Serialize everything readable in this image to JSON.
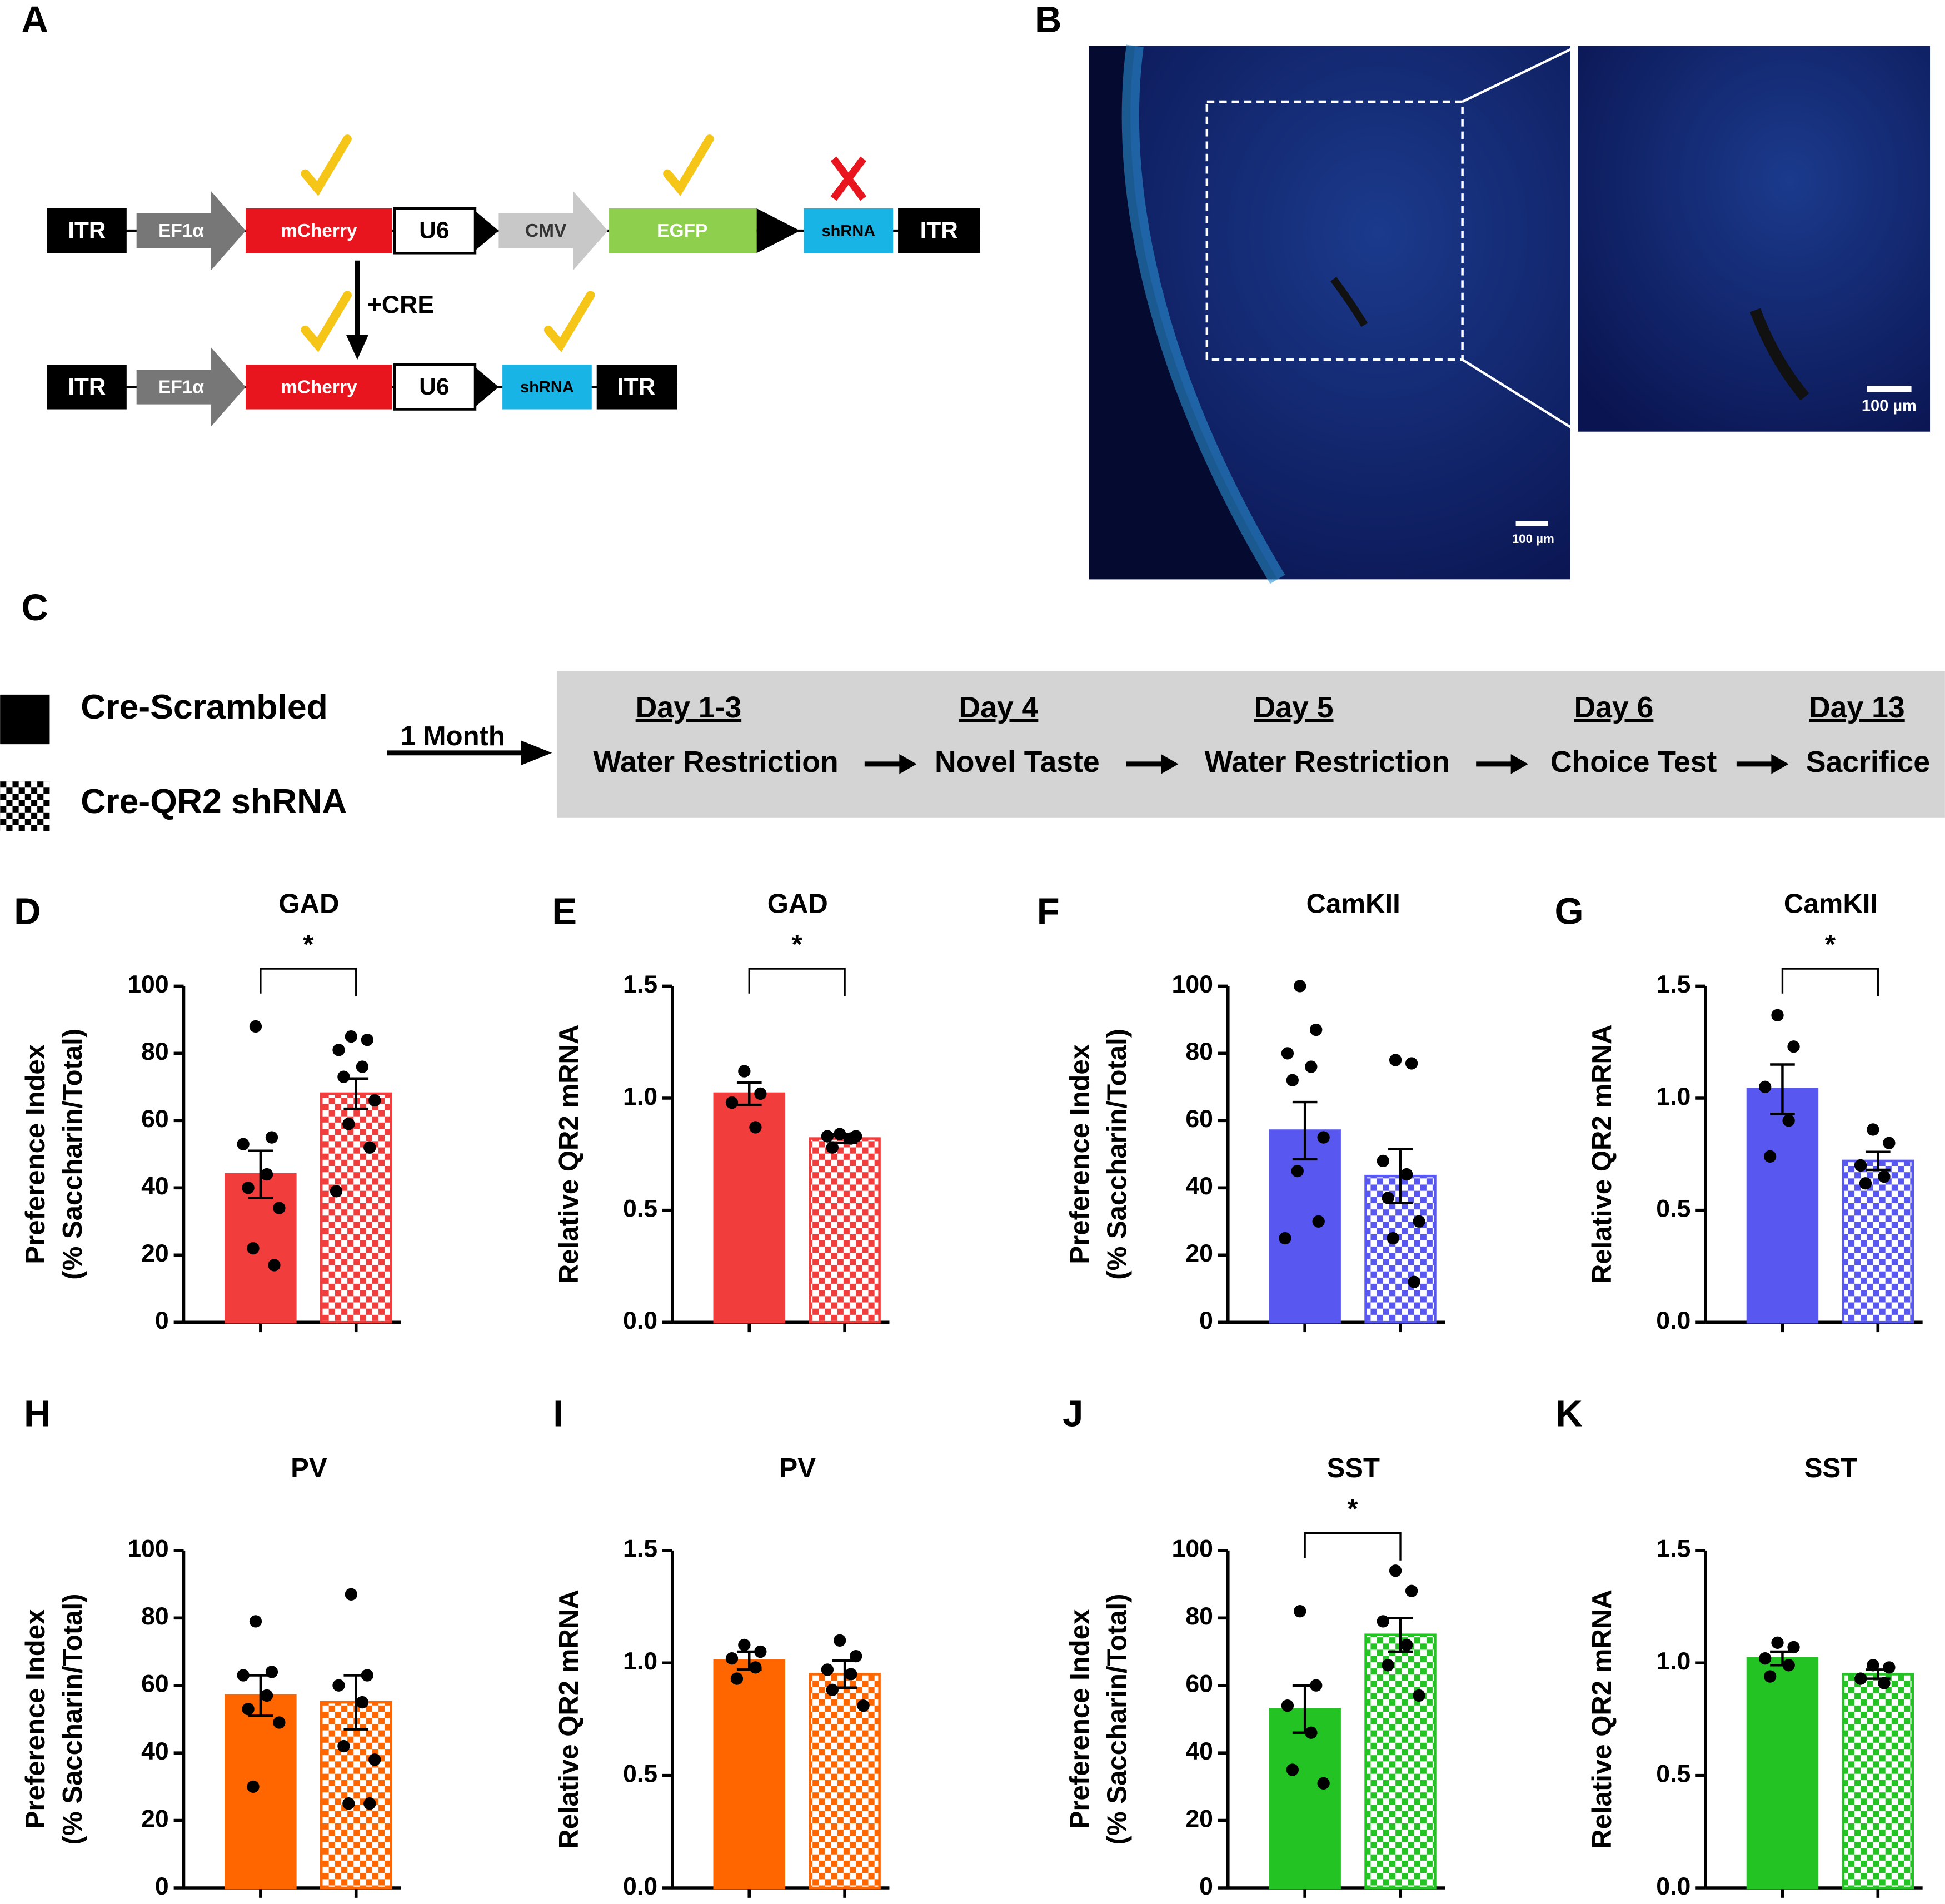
{
  "panel_labels": [
    "A",
    "B",
    "C",
    "D",
    "E",
    "F",
    "G",
    "H",
    "I",
    "J",
    "K"
  ],
  "construct": {
    "before": [
      "ITR",
      "EF1α",
      "mCherry",
      "U6",
      "CMV",
      "EGFP",
      "shRNA",
      "ITR"
    ],
    "step": "+CRE",
    "after": [
      "ITR",
      "EF1α",
      "mCherry",
      "U6",
      "shRNA",
      "ITR"
    ]
  },
  "micrograph": {
    "scale_bars": [
      "100 µm",
      "100 µm"
    ]
  },
  "timeline": {
    "legend": [
      "Cre-Scrambled",
      "Cre-QR2 shRNA"
    ],
    "delay": "1 Month",
    "steps": [
      {
        "day": "Day 1-3",
        "label": "Water Restriction"
      },
      {
        "day": "Day 4",
        "label": "Novel Taste"
      },
      {
        "day": "Day 5",
        "label": "Water Restriction"
      },
      {
        "day": "Day 6",
        "label": "Choice Test"
      },
      {
        "day": "Day 13",
        "label": "Sacrifice"
      }
    ]
  },
  "chart_data": [
    {
      "type": "bar",
      "title": "GAD",
      "ylabel": [
        "Preference Index",
        "(% Saccharin/Total)"
      ],
      "categories": [
        null,
        null
      ],
      "values": [
        44,
        68
      ],
      "errors": [
        7,
        4.5
      ],
      "points": [
        [
          88,
          55,
          53,
          44,
          40,
          34,
          22,
          17
        ],
        [
          85,
          84,
          81,
          76,
          73,
          66,
          59,
          52,
          39
        ]
      ],
      "color": "#f23d3d",
      "ylim": [
        0,
        100
      ],
      "yticks": [
        0,
        20,
        40,
        60,
        80,
        100
      ],
      "significance": "*"
    },
    {
      "type": "bar",
      "title": "GAD",
      "ylabel": [
        "Relative QR2 mRNA"
      ],
      "categories": [
        null,
        null
      ],
      "values": [
        1.02,
        0.82
      ],
      "errors": [
        0.05,
        0.02
      ],
      "points": [
        [
          1.12,
          1.02,
          0.98,
          0.87
        ],
        [
          0.84,
          0.83,
          0.83,
          0.82,
          0.78
        ]
      ],
      "color": "#f23d3d",
      "ylim": [
        0,
        1.5
      ],
      "yticks": [
        {
          "value": 0,
          "label": "0.0"
        },
        {
          "value": 0.5,
          "label": "0.5"
        },
        {
          "value": 1,
          "label": "1.0"
        },
        {
          "value": 1.5,
          "label": "1.5"
        }
      ],
      "significance": "*"
    },
    {
      "type": "bar",
      "title": "CamKII",
      "ylabel": [
        "Preference Index",
        "(% Saccharin/Total)"
      ],
      "categories": [
        null,
        null
      ],
      "values": [
        57,
        43.5
      ],
      "errors": [
        8.5,
        8
      ],
      "points": [
        [
          100,
          87,
          80,
          76,
          72,
          55,
          45,
          30,
          25
        ],
        [
          78,
          77,
          48,
          44,
          37,
          30,
          25,
          12
        ]
      ],
      "color": "#5858f0",
      "ylim": [
        0,
        100
      ],
      "yticks": [
        0,
        20,
        40,
        60,
        80,
        100
      ]
    },
    {
      "type": "bar",
      "title": "CamKII",
      "ylabel": [
        "Relative QR2 mRNA"
      ],
      "categories": [
        null,
        null
      ],
      "values": [
        1.04,
        0.72
      ],
      "errors": [
        0.11,
        0.04
      ],
      "points": [
        [
          1.37,
          1.23,
          1.05,
          0.9,
          0.74
        ],
        [
          0.86,
          0.8,
          0.7,
          0.65,
          0.62
        ]
      ],
      "color": "#5858f0",
      "ylim": [
        0,
        1.5
      ],
      "yticks": [
        {
          "value": 0,
          "label": "0.0"
        },
        {
          "value": 0.5,
          "label": "0.5"
        },
        {
          "value": 1,
          "label": "1.0"
        },
        {
          "value": 1.5,
          "label": "1.5"
        }
      ],
      "significance": "*"
    },
    {
      "type": "bar",
      "title": "PV",
      "ylabel": [
        "Preference Index",
        "(% Saccharin/Total)"
      ],
      "categories": [
        null,
        null
      ],
      "values": [
        57,
        55
      ],
      "errors": [
        6,
        8
      ],
      "points": [
        [
          79,
          64,
          63,
          57,
          53,
          49,
          30
        ],
        [
          87,
          63,
          60,
          55,
          42,
          38,
          25,
          25
        ]
      ],
      "color": "#ff6600",
      "ylim": [
        0,
        100
      ],
      "yticks": [
        0,
        20,
        40,
        60,
        80,
        100
      ]
    },
    {
      "type": "bar",
      "title": "PV",
      "ylabel": [
        "Relative QR2 mRNA"
      ],
      "categories": [
        null,
        null
      ],
      "values": [
        1.01,
        0.95
      ],
      "errors": [
        0.04,
        0.06
      ],
      "points": [
        [
          1.08,
          1.05,
          1.02,
          0.98,
          0.93
        ],
        [
          1.1,
          1.03,
          0.97,
          0.95,
          0.88,
          0.81
        ]
      ],
      "color": "#ff6600",
      "ylim": [
        0,
        1.5
      ],
      "yticks": [
        {
          "value": 0,
          "label": "0.0"
        },
        {
          "value": 0.5,
          "label": "0.5"
        },
        {
          "value": 1,
          "label": "1.0"
        },
        {
          "value": 1.5,
          "label": "1.5"
        }
      ]
    },
    {
      "type": "bar",
      "title": "SST",
      "ylabel": [
        "Preference Index",
        "(% Saccharin/Total)"
      ],
      "categories": [
        null,
        null
      ],
      "values": [
        53,
        75
      ],
      "errors": [
        7,
        5
      ],
      "points": [
        [
          82,
          60,
          54,
          46,
          35,
          31
        ],
        [
          94,
          88,
          79,
          72,
          66,
          57
        ]
      ],
      "color": "#22c322",
      "ylim": [
        0,
        100
      ],
      "yticks": [
        0,
        20,
        40,
        60,
        80,
        100
      ],
      "significance": "*"
    },
    {
      "type": "bar",
      "title": "SST",
      "ylabel": [
        "Relative QR2 mRNA"
      ],
      "categories": [
        null,
        null
      ],
      "values": [
        1.02,
        0.95
      ],
      "errors": [
        0.03,
        0.02
      ],
      "points": [
        [
          1.09,
          1.07,
          1.02,
          0.99,
          0.94
        ],
        [
          0.99,
          0.98,
          0.93,
          0.91
        ]
      ],
      "color": "#22c322",
      "ylim": [
        0,
        1.5
      ],
      "yticks": [
        {
          "value": 0,
          "label": "0.0"
        },
        {
          "value": 0.5,
          "label": "0.5"
        },
        {
          "value": 1,
          "label": "1.0"
        },
        {
          "value": 1.5,
          "label": "1.5"
        }
      ]
    }
  ]
}
